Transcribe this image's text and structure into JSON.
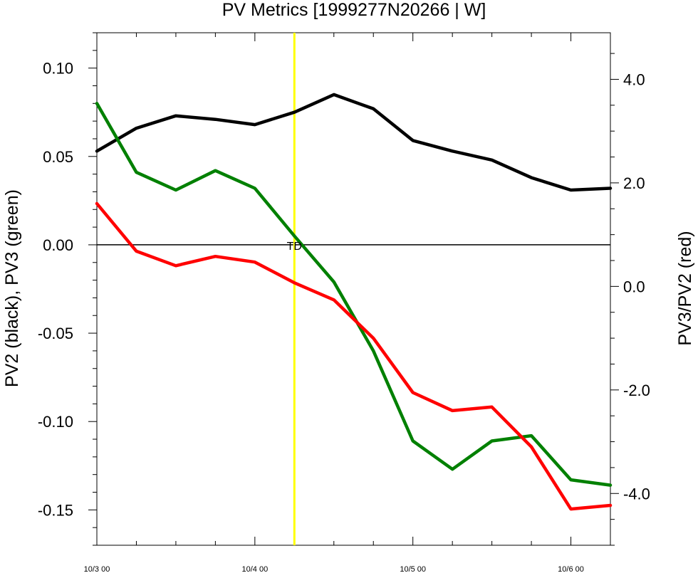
{
  "chart_data": {
    "type": "line",
    "title": "PV Metrics [1999277N20266 | W]",
    "ylabel_left": "PV2 (black), PV3 (green)",
    "ylabel_right": "PV3/PV2 (red)",
    "x_ticks": [
      "10/3 00",
      "10/4 00",
      "10/5 00",
      "10/6 00"
    ],
    "x_tick_values": [
      0,
      24,
      48,
      72
    ],
    "xlim": [
      0,
      78
    ],
    "ylim_left": [
      -0.17,
      0.12
    ],
    "yticks_left": [
      "0.10",
      "0.05",
      "0.00",
      "-0.05",
      "-0.10",
      "-0.15"
    ],
    "ytick_values_left": [
      0.1,
      0.05,
      0.0,
      -0.05,
      -0.1,
      -0.15
    ],
    "ylim_right": [
      -5.0,
      4.9
    ],
    "yticks_right": [
      "4.0",
      "2.0",
      "0.0",
      "-2.0",
      "-4.0"
    ],
    "ytick_values_right": [
      4.0,
      2.0,
      0.0,
      -2.0,
      -4.0
    ],
    "x": [
      0,
      6,
      12,
      18,
      24,
      30,
      36,
      42,
      48,
      54,
      60,
      66,
      72,
      78
    ],
    "series": [
      {
        "axis": "left",
        "color": "#000000",
        "values": [
          0.053,
          0.066,
          0.073,
          0.071,
          0.068,
          0.075,
          0.085,
          0.077,
          0.059,
          0.053,
          0.048,
          0.038,
          0.031,
          0.032
        ]
      },
      {
        "axis": "left",
        "color": "#008000",
        "values": [
          0.08,
          0.041,
          0.031,
          0.042,
          0.032,
          0.005,
          -0.021,
          -0.06,
          -0.111,
          -0.127,
          -0.111,
          -0.108,
          -0.133,
          -0.136
        ]
      },
      {
        "axis": "right",
        "color": "#ff0000",
        "values": [
          1.6,
          0.68,
          0.4,
          0.58,
          0.47,
          0.07,
          -0.26,
          -1.0,
          -2.05,
          -2.4,
          -2.33,
          -3.1,
          -4.3,
          -4.23
        ]
      }
    ],
    "marker": {
      "x": 30,
      "label": "TD",
      "color": "#ffff00"
    },
    "zero_line": true,
    "grid": false
  }
}
